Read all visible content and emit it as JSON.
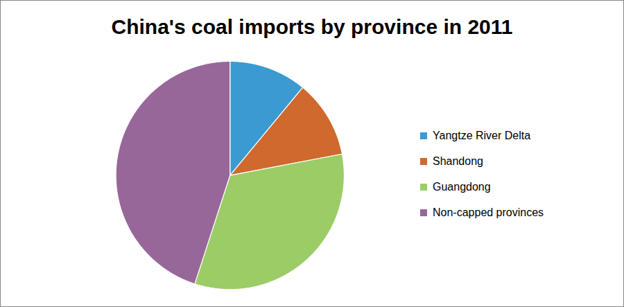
{
  "chart_data": {
    "type": "pie",
    "title": "China's coal imports by province in 2011",
    "categories": [
      "Yangtze River Delta",
      "Shandong",
      "Guangdong",
      "Non-capped provinces"
    ],
    "values": [
      11,
      11,
      33,
      45
    ],
    "colors": [
      "#3a9ad1",
      "#d0692e",
      "#9ccc66",
      "#98679a"
    ],
    "legend": "right"
  }
}
